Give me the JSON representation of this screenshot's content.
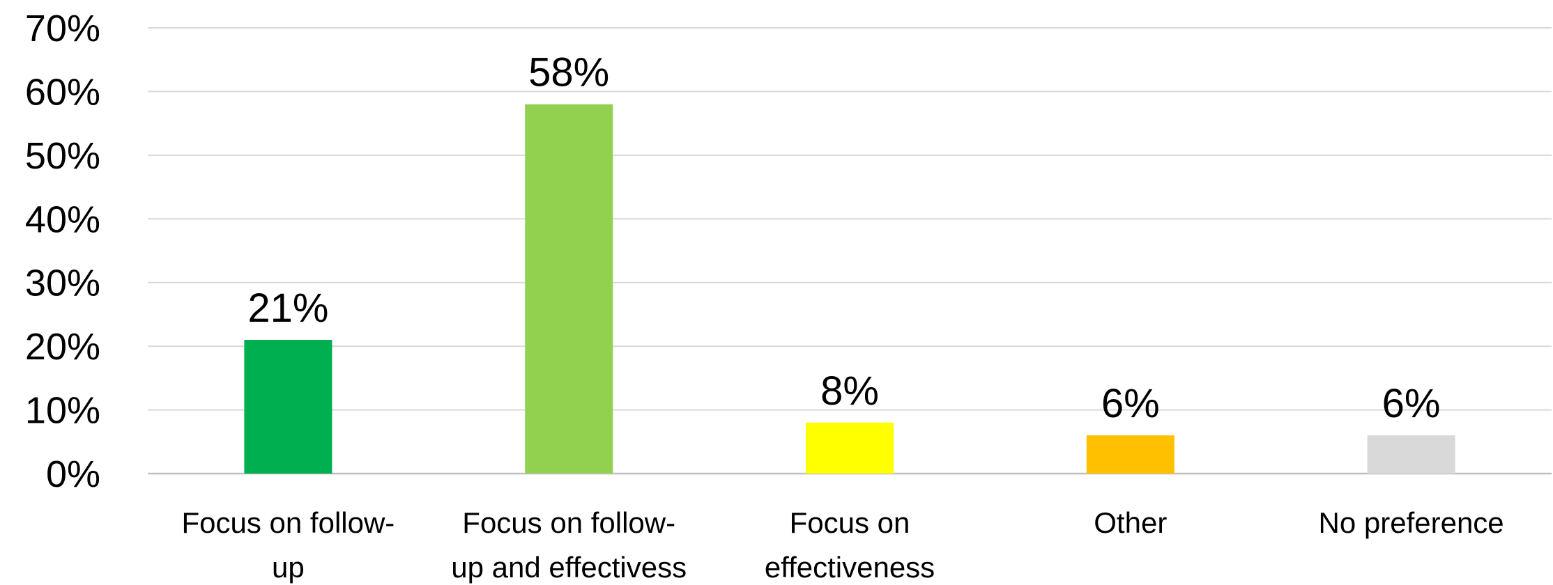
{
  "chart_data": {
    "type": "bar",
    "categories": [
      [
        "Focus on follow-",
        "up"
      ],
      [
        "Focus on follow-",
        "up and effectivess"
      ],
      [
        "Focus on",
        "effectiveness"
      ],
      [
        "Other"
      ],
      [
        "No preference"
      ]
    ],
    "values": [
      21,
      58,
      8,
      6,
      6
    ],
    "data_labels": [
      "21%",
      "58%",
      "8%",
      "6%",
      "6%"
    ],
    "colors": [
      "#00b050",
      "#92d050",
      "#ffff00",
      "#ffc000",
      "#d9d9d9"
    ],
    "ylim": [
      0,
      70
    ],
    "yticks": [
      0,
      10,
      20,
      30,
      40,
      50,
      60,
      70
    ],
    "ytick_labels": [
      "0%",
      "10%",
      "20%",
      "30%",
      "40%",
      "50%",
      "60%",
      "70%"
    ],
    "grid": true,
    "title": "",
    "xlabel": "",
    "ylabel": ""
  }
}
